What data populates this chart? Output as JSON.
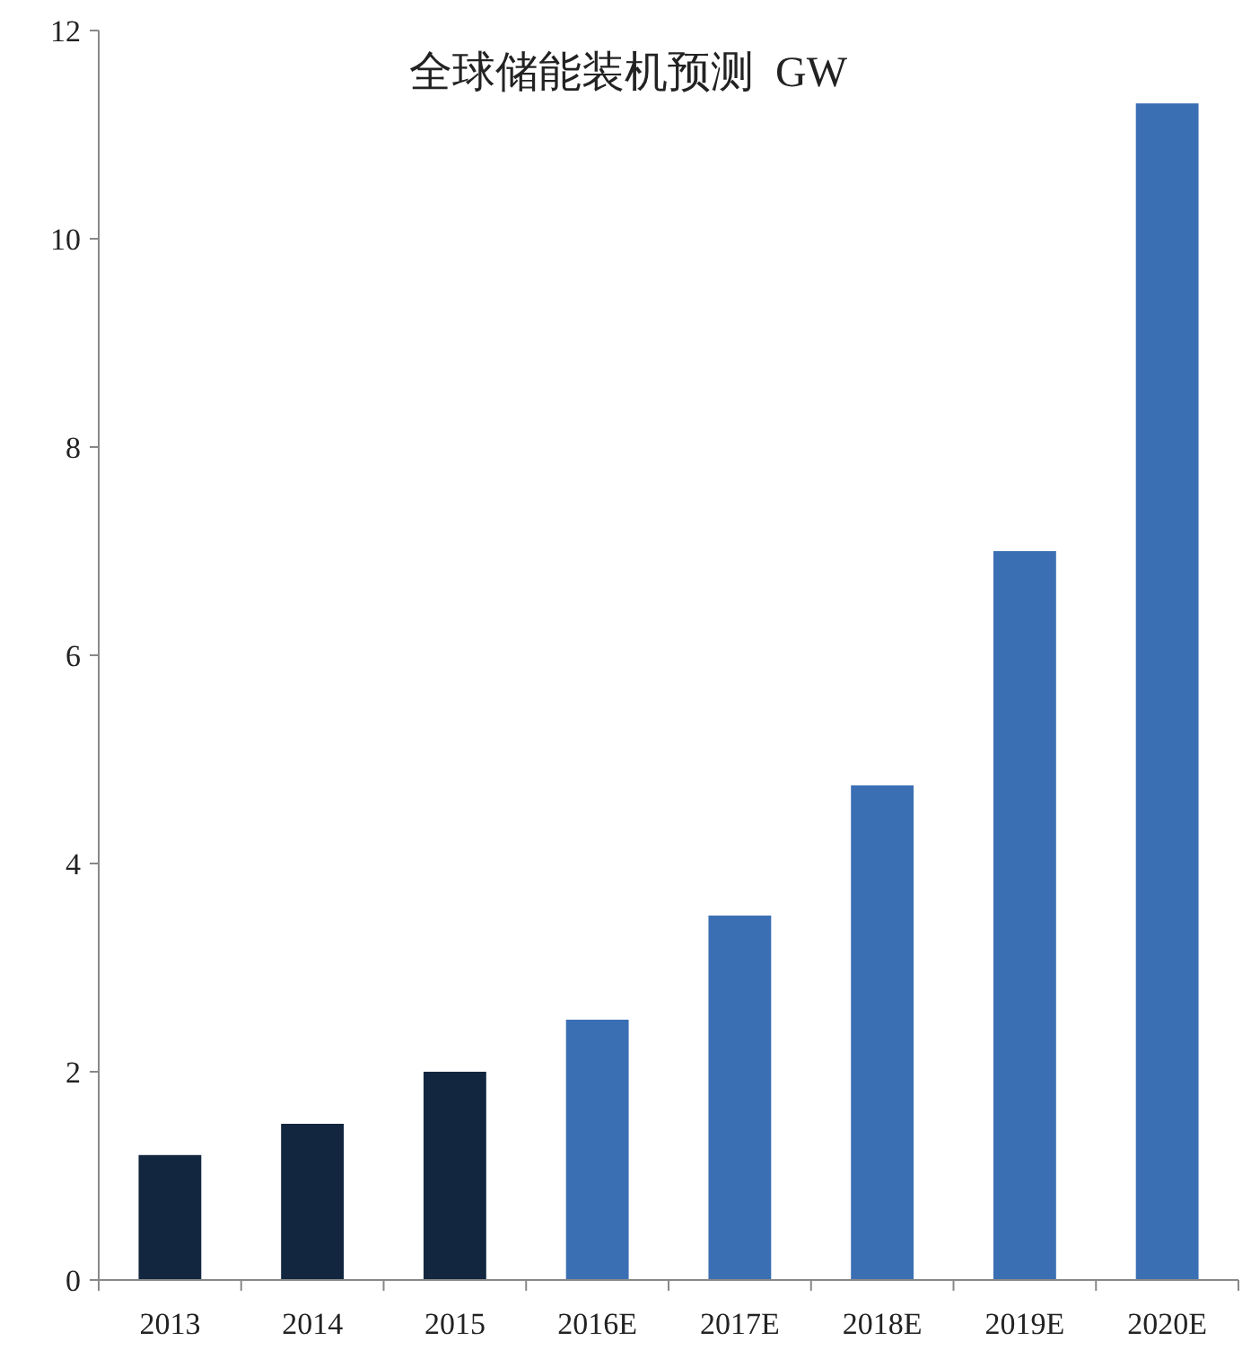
{
  "chart_data": {
    "type": "bar",
    "title": "全球储能装机预测  GW",
    "categories": [
      "2013",
      "2014",
      "2015",
      "2016E",
      "2017E",
      "2018E",
      "2019E",
      "2020E"
    ],
    "values": [
      1.2,
      1.5,
      2.0,
      2.5,
      3.5,
      4.75,
      7.0,
      11.3
    ],
    "colors": [
      "#12263f",
      "#12263f",
      "#12263f",
      "#3b6fb3",
      "#3b6fb3",
      "#3b6fb3",
      "#3b6fb3",
      "#3b6fb3"
    ],
    "ylim": [
      0,
      12
    ],
    "yticks": [
      0,
      2,
      4,
      6,
      8,
      10,
      12
    ],
    "grid": false
  }
}
